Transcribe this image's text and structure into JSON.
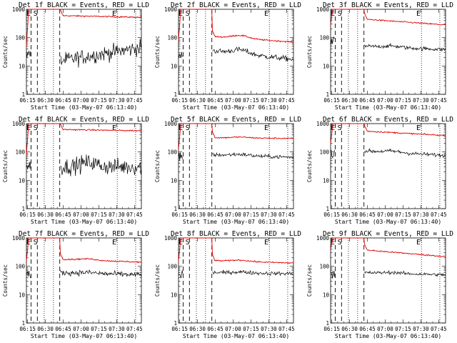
{
  "chart_data": [
    {
      "type": "line",
      "title": "Det 1f BLACK = Events, RED = LLD",
      "xlabel": "Start Time (03-May-07 06:13:40)",
      "ylabel": "Counts/sec",
      "yscale": "log",
      "ylim": [
        1,
        1000
      ],
      "x_ticks": [
        "06:15",
        "06:30",
        "06:45",
        "07:00",
        "07:15",
        "07:30",
        "07:45"
      ],
      "y_ticks": [
        "1",
        "10",
        "100",
        "1000"
      ],
      "annotations": [
        "E",
        "S",
        "E"
      ],
      "red": {
        "peak": 1000,
        "early": 50,
        "level": 600,
        "end": 520,
        "bump": 0
      },
      "black": {
        "early": 30,
        "start": 15,
        "end": 45,
        "bump": 0,
        "noise": 0.28
      }
    },
    {
      "type": "line",
      "title": "Det 2f BLACK = Events, RED = LLD",
      "xlabel": "Start Time (03-May-07 06:13:40)",
      "ylabel": "Counts/sec",
      "yscale": "log",
      "ylim": [
        1,
        1000
      ],
      "x_ticks": [
        "06:15",
        "06:30",
        "06:45",
        "07:00",
        "07:15",
        "07:30",
        "07:45"
      ],
      "y_ticks": [
        "1",
        "10",
        "100",
        "1000"
      ],
      "annotations": [
        "E",
        "S",
        "E"
      ],
      "red": {
        "peak": 1000,
        "early": 80,
        "level": 110,
        "end": 70,
        "bump": 0.35
      },
      "black": {
        "early": 30,
        "start": 35,
        "end": 17,
        "bump": 0.45,
        "noise": 0.1
      }
    },
    {
      "type": "line",
      "title": "Det 3f BLACK = Events, RED = LLD",
      "xlabel": "Start Time (03-May-07 06:13:40)",
      "ylabel": "Counts/sec",
      "yscale": "log",
      "ylim": [
        1,
        1000
      ],
      "x_ticks": [
        "06:15",
        "06:30",
        "06:45",
        "07:00",
        "07:15",
        "07:30",
        "07:45"
      ],
      "y_ticks": [
        "1",
        "10",
        "100",
        "1000"
      ],
      "annotations": [
        "E",
        "S",
        "E"
      ],
      "red": {
        "peak": 1000,
        "early": 300,
        "level": 450,
        "end": 280,
        "bump": 0
      },
      "black": {
        "early": 90,
        "start": 50,
        "end": 38,
        "bump": 0.15,
        "noise": 0.07
      }
    },
    {
      "type": "line",
      "title": "Det 4f BLACK = Events, RED = LLD",
      "xlabel": "Start Time (03-May-07 06:13:40)",
      "ylabel": "Counts/sec",
      "yscale": "log",
      "ylim": [
        1,
        1000
      ],
      "x_ticks": [
        "06:15",
        "06:30",
        "06:45",
        "07:00",
        "07:15",
        "07:30",
        "07:45"
      ],
      "y_ticks": [
        "1",
        "10",
        "100",
        "1000"
      ],
      "annotations": [
        "E",
        "S",
        "E"
      ],
      "red": {
        "peak": 1000,
        "early": 80,
        "level": 620,
        "end": 560,
        "bump": 0
      },
      "black": {
        "early": 40,
        "start": 30,
        "end": 30,
        "bump": 0.5,
        "noise": 0.3
      }
    },
    {
      "type": "line",
      "title": "Det 5f BLACK = Events, RED = LLD",
      "xlabel": "Start Time (03-May-07 06:13:40)",
      "ylabel": "Counts/sec",
      "yscale": "log",
      "ylim": [
        1,
        1000
      ],
      "x_ticks": [
        "06:15",
        "06:30",
        "06:45",
        "07:00",
        "07:15",
        "07:30",
        "07:45"
      ],
      "y_ticks": [
        "1",
        "10",
        "100",
        "1000"
      ],
      "annotations": [
        "E",
        "S",
        "E"
      ],
      "red": {
        "peak": 1000,
        "early": 120,
        "level": 320,
        "end": 300,
        "bump": 0.1
      },
      "black": {
        "early": 80,
        "start": 80,
        "end": 65,
        "bump": 0.15,
        "noise": 0.07
      }
    },
    {
      "type": "line",
      "title": "Det 6f BLACK = Events, RED = LLD",
      "xlabel": "Start Time (03-May-07 06:13:40)",
      "ylabel": "Counts/sec",
      "yscale": "log",
      "ylim": [
        1,
        1000
      ],
      "x_ticks": [
        "06:15",
        "06:30",
        "06:45",
        "07:00",
        "07:15",
        "07:30",
        "07:45"
      ],
      "y_ticks": [
        "1",
        "10",
        "100",
        "1000"
      ],
      "annotations": [
        "E",
        "S",
        "E"
      ],
      "red": {
        "peak": 1000,
        "early": 200,
        "level": 550,
        "end": 380,
        "bump": 0
      },
      "black": {
        "early": 100,
        "start": 110,
        "end": 75,
        "bump": 0.15,
        "noise": 0.07
      }
    },
    {
      "type": "line",
      "title": "Det 7f BLACK = Events, RED = LLD",
      "xlabel": "Start Time (03-May-07 06:13:40)",
      "ylabel": "Counts/sec",
      "yscale": "log",
      "ylim": [
        1,
        1000
      ],
      "x_ticks": [
        "06:15",
        "06:30",
        "06:45",
        "07:00",
        "07:15",
        "07:30",
        "07:45"
      ],
      "y_ticks": [
        "1",
        "10",
        "100",
        "1000"
      ],
      "annotations": [
        "E",
        "S",
        "E"
      ],
      "red": {
        "peak": 1000,
        "early": 150,
        "level": 180,
        "end": 140,
        "bump": 0.15
      },
      "black": {
        "early": 60,
        "start": 60,
        "end": 50,
        "bump": 0.1,
        "noise": 0.1
      }
    },
    {
      "type": "line",
      "title": "Det 8f BLACK = Events, RED = LLD",
      "xlabel": "Start Time (03-May-07 06:13:40)",
      "ylabel": "Counts/sec",
      "yscale": "log",
      "ylim": [
        1,
        1000
      ],
      "x_ticks": [
        "06:15",
        "06:30",
        "06:45",
        "07:00",
        "07:15",
        "07:30",
        "07:45"
      ],
      "y_ticks": [
        "1",
        "10",
        "100",
        "1000"
      ],
      "annotations": [
        "E",
        "S",
        "E"
      ],
      "red": {
        "peak": 1000,
        "early": 150,
        "level": 160,
        "end": 130,
        "bump": 0.15
      },
      "black": {
        "early": 60,
        "start": 60,
        "end": 55,
        "bump": 0.12,
        "noise": 0.07
      }
    },
    {
      "type": "line",
      "title": "Det 9f BLACK = Events, RED = LLD",
      "xlabel": "Start Time (03-May-07 06:13:40)",
      "ylabel": "Counts/sec",
      "yscale": "log",
      "ylim": [
        1,
        1000
      ],
      "x_ticks": [
        "06:15",
        "06:30",
        "06:45",
        "07:00",
        "07:15",
        "07:30",
        "07:45"
      ],
      "y_ticks": [
        "1",
        "10",
        "100",
        "1000"
      ],
      "annotations": [
        "E",
        "S",
        "E"
      ],
      "red": {
        "peak": 1000,
        "early": 400,
        "level": 380,
        "end": 220,
        "bump": 0
      },
      "black": {
        "early": 60,
        "start": 60,
        "end": 50,
        "bump": 0.1,
        "noise": 0.06
      }
    }
  ]
}
